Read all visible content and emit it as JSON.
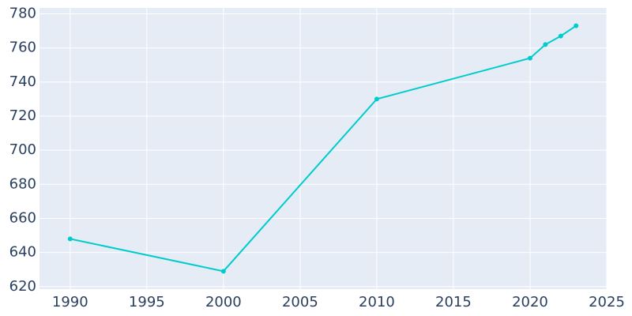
{
  "chart_data": {
    "type": "line",
    "x": [
      1990,
      2000,
      2010,
      2020,
      2021,
      2022,
      2023
    ],
    "values": [
      648,
      629,
      730,
      754,
      762,
      767,
      773
    ],
    "color": "#00cccc",
    "xlim": [
      1988,
      2025
    ],
    "xticks": [
      1990,
      1995,
      2000,
      2005,
      2010,
      2015,
      2020,
      2025
    ],
    "ylim": [
      618.5,
      783.5
    ],
    "yticks": [
      620,
      640,
      660,
      680,
      700,
      720,
      740,
      760,
      780
    ],
    "grid": true
  }
}
